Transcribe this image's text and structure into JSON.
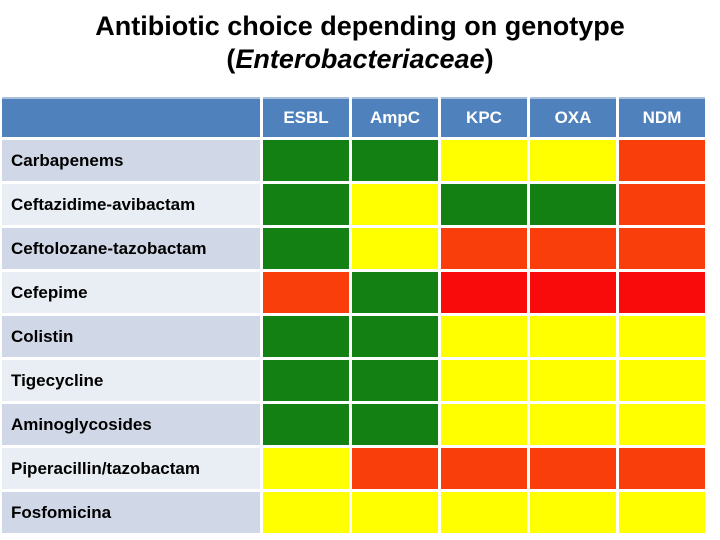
{
  "slide": {
    "title": {
      "line1": "Antibiotic choice depending on genotype",
      "line2_open": "(",
      "line2_italic": "Enterobacteriaceae",
      "line2_close": ")"
    }
  },
  "palette": {
    "header_bg": "#4F81BD",
    "header_text": "#FFFFFF",
    "header_top_line": "#A9C0DD",
    "row_band_odd": "#D0D8E8",
    "row_band_even": "#E9EDF4",
    "grid_line": "#FFFFFF",
    "green": "#138013",
    "yellow": "#FFFF00",
    "orange_red": "#F93E0C",
    "red": "#F90B0B"
  },
  "chart_data": {
    "type": "heatmap",
    "title": "Antibiotic choice depending on genotype (Enterobacteriaceae)",
    "legend_position": "none",
    "columns": [
      "ESBL",
      "AmpC",
      "KPC",
      "OXA",
      "NDM"
    ],
    "rows": [
      {
        "label": "Carbapenems",
        "cells": [
          "green",
          "green",
          "yellow",
          "yellow",
          "orange_red"
        ]
      },
      {
        "label": "Ceftazidime-avibactam",
        "cells": [
          "green",
          "yellow",
          "green",
          "green",
          "orange_red"
        ]
      },
      {
        "label": "Ceftolozane-tazobactam",
        "cells": [
          "green",
          "yellow",
          "orange_red",
          "orange_red",
          "orange_red"
        ]
      },
      {
        "label": "Cefepime",
        "cells": [
          "orange_red",
          "green",
          "red",
          "red",
          "red"
        ]
      },
      {
        "label": "Colistin",
        "cells": [
          "green",
          "green",
          "yellow",
          "yellow",
          "yellow"
        ]
      },
      {
        "label": "Tigecycline",
        "cells": [
          "green",
          "green",
          "yellow",
          "yellow",
          "yellow"
        ]
      },
      {
        "label": "Aminoglycosides",
        "cells": [
          "green",
          "green",
          "yellow",
          "yellow",
          "yellow"
        ]
      },
      {
        "label": "Piperacillin/tazobactam",
        "cells": [
          "yellow",
          "orange_red",
          "orange_red",
          "orange_red",
          "orange_red"
        ]
      },
      {
        "label": "Fosfomicina",
        "cells": [
          "yellow",
          "yellow",
          "yellow",
          "yellow",
          "yellow"
        ]
      }
    ]
  }
}
